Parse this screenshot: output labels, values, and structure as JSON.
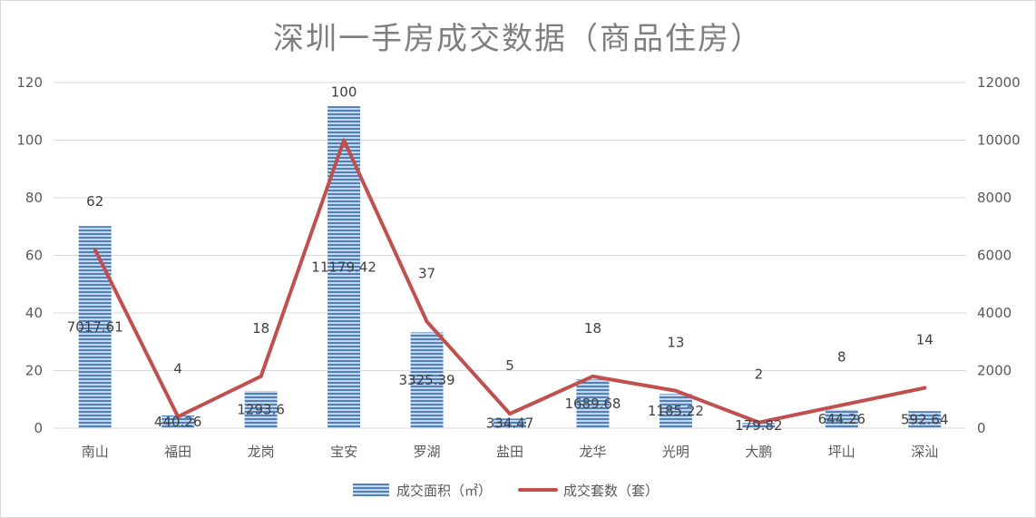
{
  "chart_data": {
    "type": "bar",
    "title": "深圳一手房成交数据（商品住房）",
    "categories": [
      "南山",
      "福田",
      "龙岗",
      "宝安",
      "罗湖",
      "盐田",
      "龙华",
      "光明",
      "大鹏",
      "坪山",
      "深汕"
    ],
    "series": [
      {
        "name": "成交面积（㎡）",
        "type": "bar",
        "axis": "right",
        "values": [
          7017.61,
          440.26,
          1293.6,
          11179.42,
          3325.39,
          334.47,
          1689.68,
          1185.22,
          179.82,
          644.26,
          592.64
        ],
        "labels": [
          "7017.61",
          "440.26",
          "1293.6",
          "11179.42",
          "3325.39",
          "334.47",
          "1689.68",
          "1185.22",
          "179.82",
          "644.26",
          "592.64"
        ],
        "color": "#4f81bd"
      },
      {
        "name": "成交套数（套）",
        "type": "line",
        "axis": "left",
        "values": [
          62,
          4,
          18,
          100,
          37,
          5,
          18,
          13,
          2,
          8,
          14
        ],
        "labels": [
          "62",
          "4",
          "18",
          "100",
          "37",
          "5",
          "18",
          "13",
          "2",
          "8",
          "14"
        ],
        "color": "#c0504d"
      }
    ],
    "y_left": {
      "ylim": [
        0,
        120
      ],
      "ticks": [
        "0",
        "20",
        "40",
        "60",
        "80",
        "100",
        "120"
      ]
    },
    "y_right": {
      "ylim": [
        0,
        12000
      ],
      "ticks": [
        "0",
        "2000",
        "4000",
        "6000",
        "8000",
        "10000",
        "12000"
      ]
    },
    "grid": true,
    "legend": "bottom"
  }
}
